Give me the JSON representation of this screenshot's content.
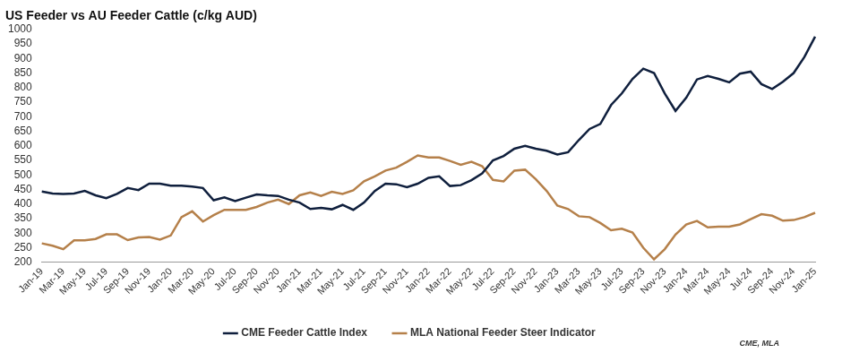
{
  "chart_data": {
    "type": "line",
    "title": "US Feeder vs AU Feeder Cattle (c/kg AUD)",
    "annotation": "CME, MLA",
    "categories": [
      "Jan-19",
      null,
      "Mar-19",
      null,
      "May-19",
      null,
      "Jul-19",
      null,
      "Sep-19",
      null,
      "Nov-19",
      null,
      "Jan-20",
      null,
      "Mar-20",
      null,
      "May-20",
      null,
      "Jul-20",
      null,
      "Sep-20",
      null,
      "Nov-20",
      null,
      "Jan-21",
      null,
      "Mar-21",
      null,
      "May-21",
      null,
      "Jul-21",
      null,
      "Sep-21",
      null,
      "Nov-21",
      null,
      "Jan-22",
      null,
      "Mar-22",
      null,
      "May-22",
      null,
      "Jul-22",
      null,
      "Sep-22",
      null,
      "Nov-22",
      null,
      "Jan-23",
      null,
      "Mar-23",
      null,
      "May-23",
      null,
      "Jul-23",
      null,
      "Sep-23",
      null,
      "Nov-23",
      null,
      "Jan-24",
      null,
      "Mar-24",
      null,
      "May-24",
      null,
      "Jul-24",
      null,
      "Sep-24",
      null,
      "Nov-24",
      null,
      "Jan-25"
    ],
    "series": [
      {
        "name": "CME Feeder Cattle Index",
        "color": "#0f1f3d",
        "values": [
          443,
          436,
          435,
          436,
          445,
          430,
          420,
          435,
          455,
          448,
          470,
          470,
          463,
          463,
          460,
          455,
          413,
          423,
          410,
          422,
          433,
          430,
          428,
          415,
          405,
          383,
          387,
          382,
          397,
          380,
          405,
          445,
          470,
          468,
          458,
          470,
          490,
          495,
          462,
          465,
          482,
          505,
          550,
          565,
          590,
          600,
          590,
          583,
          570,
          578,
          620,
          658,
          675,
          740,
          780,
          830,
          865,
          850,
          780,
          720,
          765,
          828,
          840,
          830,
          818,
          848,
          855,
          812,
          795,
          820,
          850,
          905,
          975
        ]
      },
      {
        "name": "MLA National Feeder Steer Indicator",
        "color": "#b5804a",
        "values": [
          265,
          257,
          245,
          275,
          275,
          280,
          296,
          296,
          276,
          285,
          287,
          278,
          292,
          355,
          375,
          340,
          362,
          380,
          380,
          380,
          390,
          405,
          415,
          400,
          430,
          440,
          428,
          442,
          435,
          447,
          478,
          495,
          515,
          525,
          545,
          567,
          560,
          560,
          548,
          535,
          545,
          530,
          483,
          478,
          515,
          518,
          485,
          445,
          395,
          383,
          358,
          355,
          335,
          310,
          315,
          302,
          250,
          210,
          245,
          295,
          330,
          342,
          320,
          322,
          322,
          330,
          348,
          365,
          360,
          343,
          345,
          355,
          370
        ]
      }
    ],
    "ylim": [
      200,
      1000
    ],
    "yticks": [
      200,
      250,
      300,
      350,
      400,
      450,
      500,
      550,
      600,
      650,
      700,
      750,
      800,
      850,
      900,
      950,
      1000
    ],
    "grid": false,
    "legend": "bottom"
  }
}
